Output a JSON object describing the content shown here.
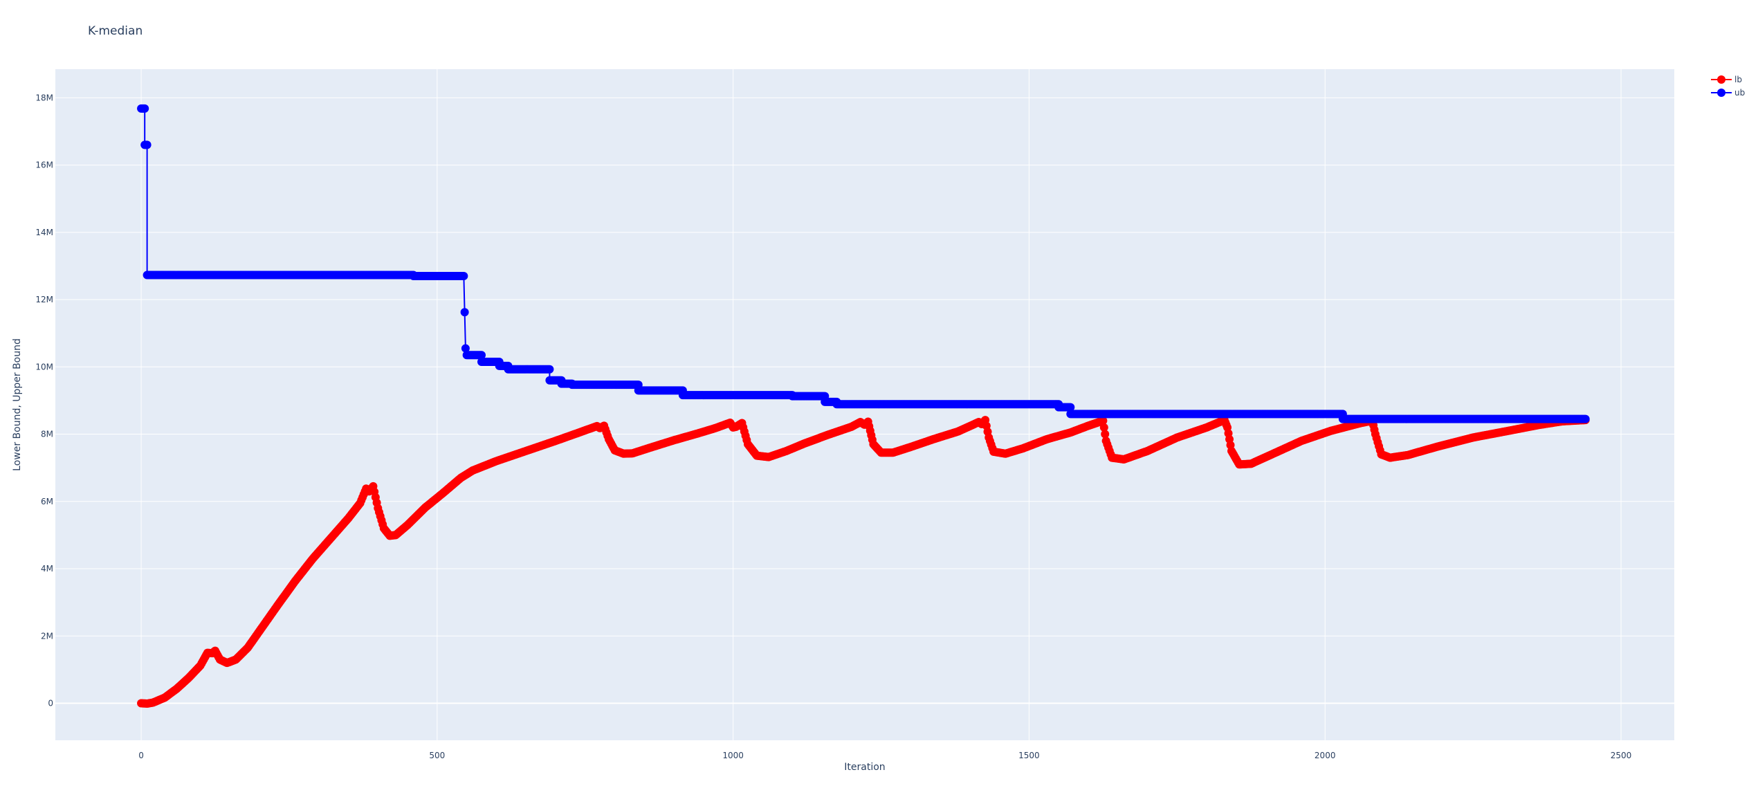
{
  "chart_data": {
    "type": "line",
    "title": "K-median",
    "xlabel": "Iteration",
    "ylabel": "Lower Bound, Upper Bound",
    "xlim": [
      -145,
      2590
    ],
    "ylim": [
      -1100000,
      18850000
    ],
    "x_ticks": [
      0,
      500,
      1000,
      1500,
      2000,
      2500
    ],
    "x_tick_labels": [
      "0",
      "500",
      "1000",
      "1500",
      "2000",
      "2500"
    ],
    "y_ticks": [
      0,
      2000000,
      4000000,
      6000000,
      8000000,
      10000000,
      12000000,
      14000000,
      16000000,
      18000000
    ],
    "y_tick_labels": [
      "0",
      "2M",
      "4M",
      "6M",
      "8M",
      "10M",
      "12M",
      "14M",
      "16M",
      "18M"
    ],
    "grid": true,
    "legend_position": "top-right",
    "series": [
      {
        "name": "lb",
        "color": "#ff0000",
        "markers": true,
        "points": [
          [
            0,
            0
          ],
          [
            10,
            -10000
          ],
          [
            20,
            20000
          ],
          [
            40,
            170000
          ],
          [
            60,
            430000
          ],
          [
            80,
            750000
          ],
          [
            100,
            1120000
          ],
          [
            112,
            1500000
          ],
          [
            120,
            1490000
          ],
          [
            125,
            1560000
          ],
          [
            133,
            1300000
          ],
          [
            145,
            1200000
          ],
          [
            160,
            1300000
          ],
          [
            180,
            1650000
          ],
          [
            200,
            2150000
          ],
          [
            230,
            2900000
          ],
          [
            260,
            3630000
          ],
          [
            290,
            4300000
          ],
          [
            320,
            4900000
          ],
          [
            350,
            5500000
          ],
          [
            370,
            5950000
          ],
          [
            380,
            6380000
          ],
          [
            385,
            6300000
          ],
          [
            392,
            6450000
          ],
          [
            400,
            5800000
          ],
          [
            410,
            5200000
          ],
          [
            420,
            4980000
          ],
          [
            430,
            5000000
          ],
          [
            450,
            5300000
          ],
          [
            480,
            5820000
          ],
          [
            510,
            6250000
          ],
          [
            540,
            6700000
          ],
          [
            560,
            6920000
          ],
          [
            600,
            7200000
          ],
          [
            650,
            7500000
          ],
          [
            700,
            7800000
          ],
          [
            740,
            8050000
          ],
          [
            770,
            8240000
          ],
          [
            775,
            8180000
          ],
          [
            782,
            8250000
          ],
          [
            790,
            7850000
          ],
          [
            800,
            7520000
          ],
          [
            815,
            7420000
          ],
          [
            830,
            7430000
          ],
          [
            860,
            7600000
          ],
          [
            900,
            7820000
          ],
          [
            940,
            8020000
          ],
          [
            970,
            8180000
          ],
          [
            995,
            8340000
          ],
          [
            1000,
            8200000
          ],
          [
            1005,
            8220000
          ],
          [
            1015,
            8330000
          ],
          [
            1025,
            7700000
          ],
          [
            1040,
            7360000
          ],
          [
            1060,
            7320000
          ],
          [
            1090,
            7500000
          ],
          [
            1120,
            7720000
          ],
          [
            1160,
            7980000
          ],
          [
            1200,
            8220000
          ],
          [
            1215,
            8360000
          ],
          [
            1222,
            8280000
          ],
          [
            1228,
            8370000
          ],
          [
            1237,
            7700000
          ],
          [
            1250,
            7450000
          ],
          [
            1270,
            7450000
          ],
          [
            1300,
            7620000
          ],
          [
            1340,
            7860000
          ],
          [
            1380,
            8080000
          ],
          [
            1415,
            8360000
          ],
          [
            1420,
            8300000
          ],
          [
            1426,
            8420000
          ],
          [
            1432,
            7900000
          ],
          [
            1440,
            7480000
          ],
          [
            1460,
            7420000
          ],
          [
            1490,
            7580000
          ],
          [
            1530,
            7850000
          ],
          [
            1570,
            8050000
          ],
          [
            1600,
            8250000
          ],
          [
            1625,
            8400000
          ],
          [
            1630,
            7800000
          ],
          [
            1640,
            7300000
          ],
          [
            1660,
            7250000
          ],
          [
            1700,
            7500000
          ],
          [
            1750,
            7900000
          ],
          [
            1800,
            8200000
          ],
          [
            1830,
            8420000
          ],
          [
            1835,
            8200000
          ],
          [
            1842,
            7500000
          ],
          [
            1855,
            7100000
          ],
          [
            1875,
            7120000
          ],
          [
            1910,
            7400000
          ],
          [
            1960,
            7800000
          ],
          [
            2010,
            8100000
          ],
          [
            2060,
            8330000
          ],
          [
            2080,
            8400000
          ],
          [
            2085,
            8000000
          ],
          [
            2095,
            7400000
          ],
          [
            2110,
            7300000
          ],
          [
            2140,
            7380000
          ],
          [
            2190,
            7630000
          ],
          [
            2250,
            7900000
          ],
          [
            2310,
            8100000
          ],
          [
            2360,
            8270000
          ],
          [
            2400,
            8380000
          ],
          [
            2440,
            8420000
          ]
        ]
      },
      {
        "name": "ub",
        "color": "#0000ff",
        "markers": true,
        "points": [
          [
            0,
            17680000
          ],
          [
            6,
            17680000
          ],
          [
            6,
            16600000
          ],
          [
            10,
            16600000
          ],
          [
            10,
            12730000
          ],
          [
            460,
            12730000
          ],
          [
            460,
            12700000
          ],
          [
            545,
            12700000
          ],
          [
            548,
            10550000
          ],
          [
            550,
            10350000
          ],
          [
            575,
            10350000
          ],
          [
            575,
            10150000
          ],
          [
            605,
            10150000
          ],
          [
            605,
            10030000
          ],
          [
            620,
            10030000
          ],
          [
            620,
            9930000
          ],
          [
            690,
            9930000
          ],
          [
            690,
            9600000
          ],
          [
            710,
            9600000
          ],
          [
            710,
            9500000
          ],
          [
            728,
            9500000
          ],
          [
            728,
            9470000
          ],
          [
            840,
            9470000
          ],
          [
            840,
            9300000
          ],
          [
            915,
            9300000
          ],
          [
            915,
            9160000
          ],
          [
            1100,
            9160000
          ],
          [
            1100,
            9130000
          ],
          [
            1155,
            9130000
          ],
          [
            1155,
            8960000
          ],
          [
            1175,
            8960000
          ],
          [
            1175,
            8890000
          ],
          [
            1550,
            8890000
          ],
          [
            1550,
            8800000
          ],
          [
            1570,
            8800000
          ],
          [
            1570,
            8600000
          ],
          [
            2030,
            8600000
          ],
          [
            2030,
            8450000
          ],
          [
            2440,
            8450000
          ]
        ]
      }
    ]
  }
}
